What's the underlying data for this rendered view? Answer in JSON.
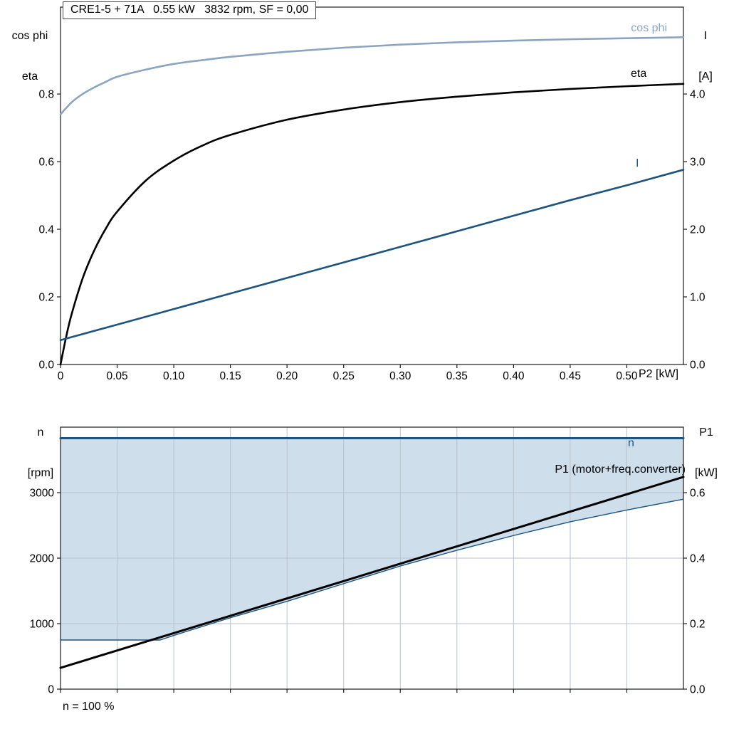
{
  "chart_data": [
    {
      "type": "line",
      "title": "CRE1-5 + 71A   0.55 kW   3832 rpm, SF = 0,00",
      "x_label": "P2 [kW]",
      "x_range": [
        0,
        0.55
      ],
      "x_ticks": [
        0,
        0.05,
        0.1,
        0.15,
        0.2,
        0.25,
        0.3,
        0.35,
        0.4,
        0.45,
        0.5
      ],
      "x_tick_labels": [
        "0",
        "0.05",
        "0.10",
        "0.15",
        "0.20",
        "0.25",
        "0.30",
        "0.35",
        "0.40",
        "0.45",
        "0.50"
      ],
      "grid": false,
      "left_axis": {
        "title_lines": [
          "cos phi",
          "eta"
        ],
        "range": [
          0,
          1.057
        ],
        "ticks": [
          0,
          0.2,
          0.4,
          0.6,
          0.8
        ],
        "tick_labels": [
          "0.0",
          "0.2",
          "0.4",
          "0.6",
          "0.8"
        ]
      },
      "right_axis": {
        "title_lines": [
          "I",
          "[A]"
        ],
        "range": [
          0,
          5.285
        ],
        "ticks": [
          0,
          1,
          2,
          3,
          4
        ],
        "tick_labels": [
          "0.0",
          "1.0",
          "2.0",
          "3.0",
          "4.0"
        ]
      },
      "series": [
        {
          "name": "cos phi",
          "axis": "left",
          "color": "#8ba5c1",
          "width": 2.6,
          "smooth": true,
          "points": [
            [
              0,
              0.74
            ],
            [
              0.01,
              0.776
            ],
            [
              0.02,
              0.801
            ],
            [
              0.03,
              0.82
            ],
            [
              0.04,
              0.836
            ],
            [
              0.05,
              0.851
            ],
            [
              0.075,
              0.872
            ],
            [
              0.1,
              0.889
            ],
            [
              0.125,
              0.9
            ],
            [
              0.15,
              0.91
            ],
            [
              0.2,
              0.925
            ],
            [
              0.25,
              0.937
            ],
            [
              0.3,
              0.946
            ],
            [
              0.35,
              0.953
            ],
            [
              0.4,
              0.958
            ],
            [
              0.45,
              0.962
            ],
            [
              0.5,
              0.965
            ],
            [
              0.55,
              0.968
            ]
          ]
        },
        {
          "name": "eta",
          "axis": "left",
          "color": "#000000",
          "width": 2.6,
          "smooth": true,
          "points": [
            [
              0,
              0
            ],
            [
              0.005,
              0.082
            ],
            [
              0.01,
              0.151
            ],
            [
              0.02,
              0.259
            ],
            [
              0.03,
              0.339
            ],
            [
              0.04,
              0.402
            ],
            [
              0.05,
              0.452
            ],
            [
              0.075,
              0.543
            ],
            [
              0.1,
              0.603
            ],
            [
              0.125,
              0.647
            ],
            [
              0.15,
              0.679
            ],
            [
              0.2,
              0.724
            ],
            [
              0.25,
              0.754
            ],
            [
              0.3,
              0.776
            ],
            [
              0.35,
              0.792
            ],
            [
              0.4,
              0.805
            ],
            [
              0.45,
              0.815
            ],
            [
              0.5,
              0.823
            ],
            [
              0.55,
              0.83
            ]
          ]
        },
        {
          "name": "I",
          "axis": "right",
          "color": "#1d5480",
          "width": 2.6,
          "smooth": false,
          "points": [
            [
              0,
              0.36
            ],
            [
              0.05,
              0.59
            ],
            [
              0.1,
              0.82
            ],
            [
              0.15,
              1.05
            ],
            [
              0.2,
              1.28
            ],
            [
              0.25,
              1.51
            ],
            [
              0.3,
              1.74
            ],
            [
              0.35,
              1.97
            ],
            [
              0.4,
              2.2
            ],
            [
              0.45,
              2.43
            ],
            [
              0.5,
              2.65
            ],
            [
              0.55,
              2.88
            ]
          ]
        }
      ]
    },
    {
      "type": "line",
      "note": "n = 100 %",
      "x_label": "",
      "x_range": [
        0,
        0.55
      ],
      "x_ticks": [
        0,
        0.05,
        0.1,
        0.15,
        0.2,
        0.25,
        0.3,
        0.35,
        0.4,
        0.45,
        0.5
      ],
      "x_tick_labels": [],
      "grid": true,
      "grid_color": "#b9c2cb",
      "left_axis": {
        "title_lines": [
          "n",
          "[rpm]"
        ],
        "range": [
          0,
          4000
        ],
        "ticks": [
          0,
          1000,
          2000,
          3000
        ],
        "tick_labels": [
          "0",
          "1000",
          "2000",
          "3000"
        ]
      },
      "right_axis": {
        "title_lines": [
          "P1",
          "[kW]"
        ],
        "range": [
          0,
          0.8
        ],
        "ticks": [
          0,
          0.2,
          0.4,
          0.6
        ],
        "tick_labels": [
          "0.0",
          "0.2",
          "0.4",
          "0.6"
        ]
      },
      "band": {
        "upper_value": 3832,
        "fill": "#cfdeeb",
        "lower_points": [
          [
            0,
            750
          ],
          [
            0.05,
            750
          ],
          [
            0.088,
            750
          ],
          [
            0.1,
            820
          ],
          [
            0.125,
            955
          ],
          [
            0.15,
            1090
          ],
          [
            0.175,
            1215
          ],
          [
            0.2,
            1340
          ],
          [
            0.25,
            1610
          ],
          [
            0.3,
            1880
          ],
          [
            0.35,
            2120
          ],
          [
            0.4,
            2345
          ],
          [
            0.45,
            2555
          ],
          [
            0.5,
            2735
          ],
          [
            0.55,
            2900
          ]
        ]
      },
      "series": [
        {
          "name": "n",
          "axis": "left",
          "color": "#1d5480",
          "width": 3,
          "smooth": false,
          "points": [
            [
              0,
              3832
            ],
            [
              0.55,
              3832
            ]
          ]
        },
        {
          "name": "speed range lower limit",
          "axis": "left",
          "color": "#1d5480",
          "width": 1.4,
          "smooth": false,
          "points": [
            [
              0,
              750
            ],
            [
              0.05,
              750
            ],
            [
              0.088,
              750
            ],
            [
              0.1,
              820
            ],
            [
              0.125,
              955
            ],
            [
              0.15,
              1090
            ],
            [
              0.175,
              1215
            ],
            [
              0.2,
              1340
            ],
            [
              0.25,
              1610
            ],
            [
              0.3,
              1880
            ],
            [
              0.35,
              2120
            ],
            [
              0.4,
              2345
            ],
            [
              0.45,
              2555
            ],
            [
              0.5,
              2735
            ],
            [
              0.55,
              2900
            ]
          ]
        },
        {
          "name": "P1 (motor+freq.converter)",
          "axis": "right",
          "color": "#000000",
          "width": 3,
          "smooth": false,
          "points": [
            [
              0,
              0.065
            ],
            [
              0.55,
              0.648
            ]
          ]
        }
      ]
    }
  ]
}
